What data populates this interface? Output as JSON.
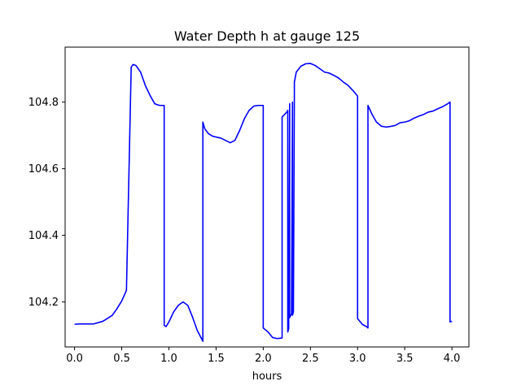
{
  "chart_data": {
    "type": "line",
    "title": "Water Depth h at gauge 125",
    "xlabel": "hours",
    "ylabel": "",
    "xlim": [
      -0.1,
      4.18
    ],
    "ylim": [
      104.065,
      104.965
    ],
    "xticks": [
      0.0,
      0.5,
      1.0,
      1.5,
      2.0,
      2.5,
      3.0,
      3.5,
      4.0
    ],
    "xtick_labels": [
      "0.0",
      "0.5",
      "1.0",
      "1.5",
      "2.0",
      "2.5",
      "3.0",
      "3.5",
      "4.0"
    ],
    "yticks": [
      104.2,
      104.4,
      104.6,
      104.8
    ],
    "ytick_labels": [
      "104.2",
      "104.4",
      "104.6",
      "104.8"
    ],
    "grid": false,
    "series": [
      {
        "color": "#0000ff",
        "x": [
          0.0,
          0.05,
          0.2,
          0.3,
          0.4,
          0.45,
          0.5,
          0.55,
          0.6,
          0.6,
          0.62,
          0.65,
          0.7,
          0.75,
          0.8,
          0.85,
          0.9,
          0.95,
          0.95,
          0.97,
          1.0,
          1.05,
          1.1,
          1.15,
          1.2,
          1.25,
          1.3,
          1.36,
          1.36,
          1.38,
          1.42,
          1.46,
          1.5,
          1.55,
          1.6,
          1.65,
          1.7,
          1.75,
          1.8,
          1.85,
          1.9,
          1.95,
          2.0,
          2.0,
          2.05,
          2.1,
          2.15,
          2.2,
          2.2,
          2.25,
          2.26,
          2.26,
          2.27,
          2.28,
          2.28,
          2.3,
          2.31,
          2.31,
          2.32,
          2.33,
          2.33,
          2.35,
          2.4,
          2.45,
          2.5,
          2.55,
          2.6,
          2.65,
          2.7,
          2.75,
          2.8,
          2.85,
          2.9,
          2.95,
          3.0,
          3.0,
          3.05,
          3.1,
          3.11,
          3.11,
          3.15,
          3.2,
          3.25,
          3.3,
          3.35,
          3.4,
          3.45,
          3.5,
          3.55,
          3.6,
          3.65,
          3.7,
          3.75,
          3.8,
          3.85,
          3.9,
          3.95,
          3.98,
          3.98,
          4.0
        ],
        "y": [
          104.133,
          104.134,
          104.134,
          104.142,
          104.16,
          104.18,
          104.203,
          104.235,
          104.9,
          104.905,
          104.913,
          104.91,
          104.89,
          104.85,
          104.82,
          104.795,
          104.79,
          104.79,
          104.13,
          104.126,
          104.14,
          104.17,
          104.19,
          104.2,
          104.19,
          104.155,
          104.115,
          104.082,
          104.74,
          104.72,
          104.705,
          104.698,
          104.695,
          104.692,
          104.685,
          104.678,
          104.685,
          104.715,
          104.75,
          104.775,
          104.788,
          104.79,
          104.79,
          104.122,
          104.11,
          104.093,
          104.09,
          104.092,
          104.755,
          104.77,
          104.775,
          104.11,
          104.12,
          104.795,
          104.153,
          104.165,
          104.8,
          104.16,
          104.17,
          104.83,
          104.86,
          104.89,
          104.908,
          104.915,
          104.916,
          104.91,
          104.9,
          104.89,
          104.887,
          104.88,
          104.872,
          104.86,
          104.85,
          104.835,
          104.818,
          104.15,
          104.133,
          104.125,
          104.122,
          104.79,
          104.765,
          104.74,
          104.728,
          104.725,
          104.727,
          104.73,
          104.738,
          104.74,
          104.744,
          104.752,
          104.758,
          104.763,
          104.77,
          104.773,
          104.78,
          104.786,
          104.794,
          104.8,
          104.14,
          104.142
        ]
      }
    ]
  }
}
